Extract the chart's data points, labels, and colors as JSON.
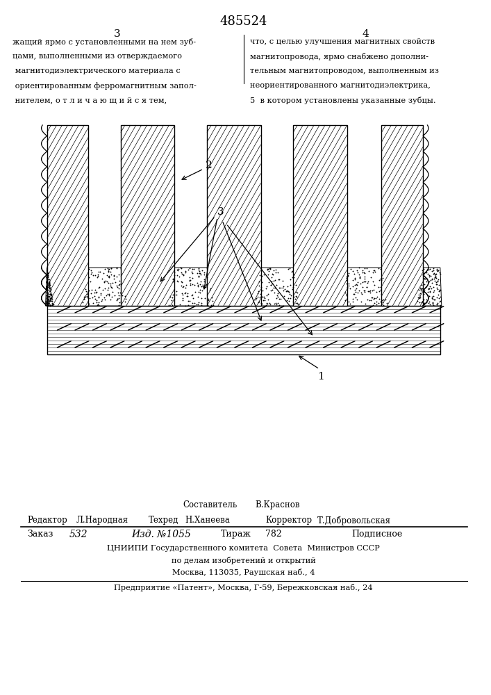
{
  "page_color": "#ffffff",
  "patent_number": "485524",
  "page_left_col": "3",
  "page_right_col": "4",
  "text_left": [
    "жащий ярмо с установленными на нем зуб-",
    "цами, выполненными из отверждаемого",
    " магнитодиэлектрического материала с",
    " ориентированным ферромагнитным запол-",
    " нителем, о т л и ч а ю щ и й с я тем,"
  ],
  "text_right": [
    "что, с целью улучшения магнитных свойств",
    "магнитопровода, ярмо снабжено дополни-",
    "тельным магнитопроводом, выполненным из",
    "неориентированного магнитодиэлектрика,",
    "5  в котором установлены указанные зубцы."
  ],
  "label_1": "1",
  "label_2": "2",
  "label_3": "3",
  "footer_sestavitel_label": "Составитель",
  "footer_sestavitel_name": "В.Краснов",
  "footer_redaktor_label": "Редактор",
  "footer_redaktor_name": "Л.Народная",
  "footer_tekhred_label": "Техред",
  "footer_tekhred_name": "Н.Ханеева",
  "footer_korrektor_label": "Корректор",
  "footer_korrektor_name": "Т.Добровольская",
  "footer_zakaz_label": "Заказ",
  "footer_zakaz_num": "532",
  "footer_izd_label": "Изд. №",
  "footer_izd_num": "1055",
  "footer_tirazh_label": "Тираж",
  "footer_tirazh_num": "782",
  "footer_podpisnoe": "Подписное",
  "footer_tsniipi": "ЦНИИПИ Государственного комитета  Совета  Министров СССР",
  "footer_po_delam": "по делам изобретений и открытий",
  "footer_moskva": "Москва, 113035, Раушская наб., 4",
  "footer_predpriyatie": "Предприятие «Патент», Москва, Г-59, Бережковская наб., 24"
}
